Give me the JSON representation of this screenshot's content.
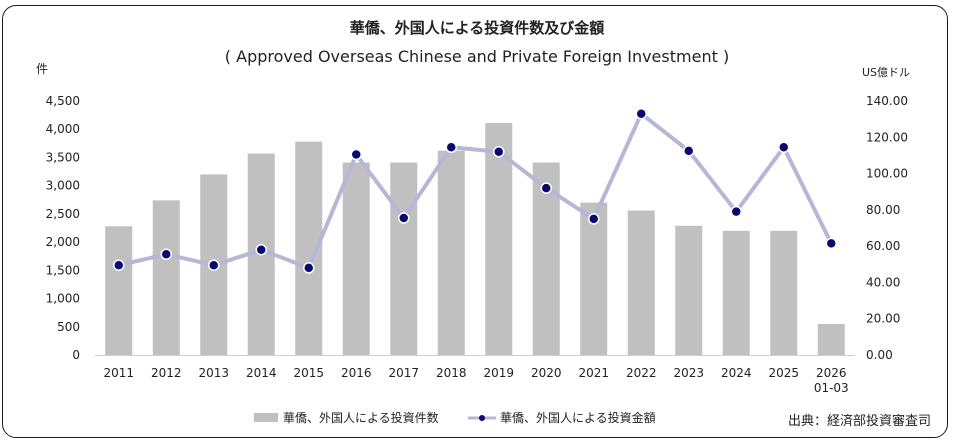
{
  "chart_data": {
    "type": "bar+line",
    "title": "華僑、外国人による投資件数及び金額",
    "subtitle": "( Approved Overseas Chinese and Private Foreign Investment )",
    "left_axis_unit": "件",
    "right_axis_unit": "US億ドル",
    "categories": [
      "2011",
      "2012",
      "2013",
      "2014",
      "2015",
      "2016",
      "2017",
      "2018",
      "2019",
      "2020",
      "2021",
      "2022",
      "2023",
      "2024",
      "2025",
      "2026\n01-03"
    ],
    "left_ylim": [
      0,
      4500
    ],
    "left_ticks": [
      "0",
      "500",
      "1,000",
      "1,500",
      "2,000",
      "2,500",
      "3,000",
      "3,500",
      "4,000",
      "4,500"
    ],
    "right_ylim": [
      0,
      140
    ],
    "right_ticks": [
      "0.00",
      "20.00",
      "40.00",
      "60.00",
      "80.00",
      "100.00",
      "120.00",
      "140.00"
    ],
    "series": [
      {
        "name": "華僑、外国人による投資件数",
        "type": "bar",
        "axis": "left",
        "color": "#c0c0c0",
        "values": [
          2280,
          2740,
          3200,
          3570,
          3780,
          3410,
          3410,
          3620,
          4110,
          3410,
          2700,
          2560,
          2290,
          2200,
          2200,
          550
        ]
      },
      {
        "name": "華僑、外国人による投資金額",
        "type": "line",
        "axis": "right",
        "line_color": "#b6b6d6",
        "marker_color": "#0a0a6e",
        "values": [
          49.5,
          55.5,
          49.5,
          58.0,
          48.0,
          110.5,
          75.5,
          114.5,
          112.0,
          92.0,
          75.0,
          133.0,
          112.5,
          79.0,
          114.5,
          61.5
        ]
      }
    ],
    "grid": false,
    "legend_placement": "bottom-center"
  },
  "source": "出典：経済部投資審査司"
}
